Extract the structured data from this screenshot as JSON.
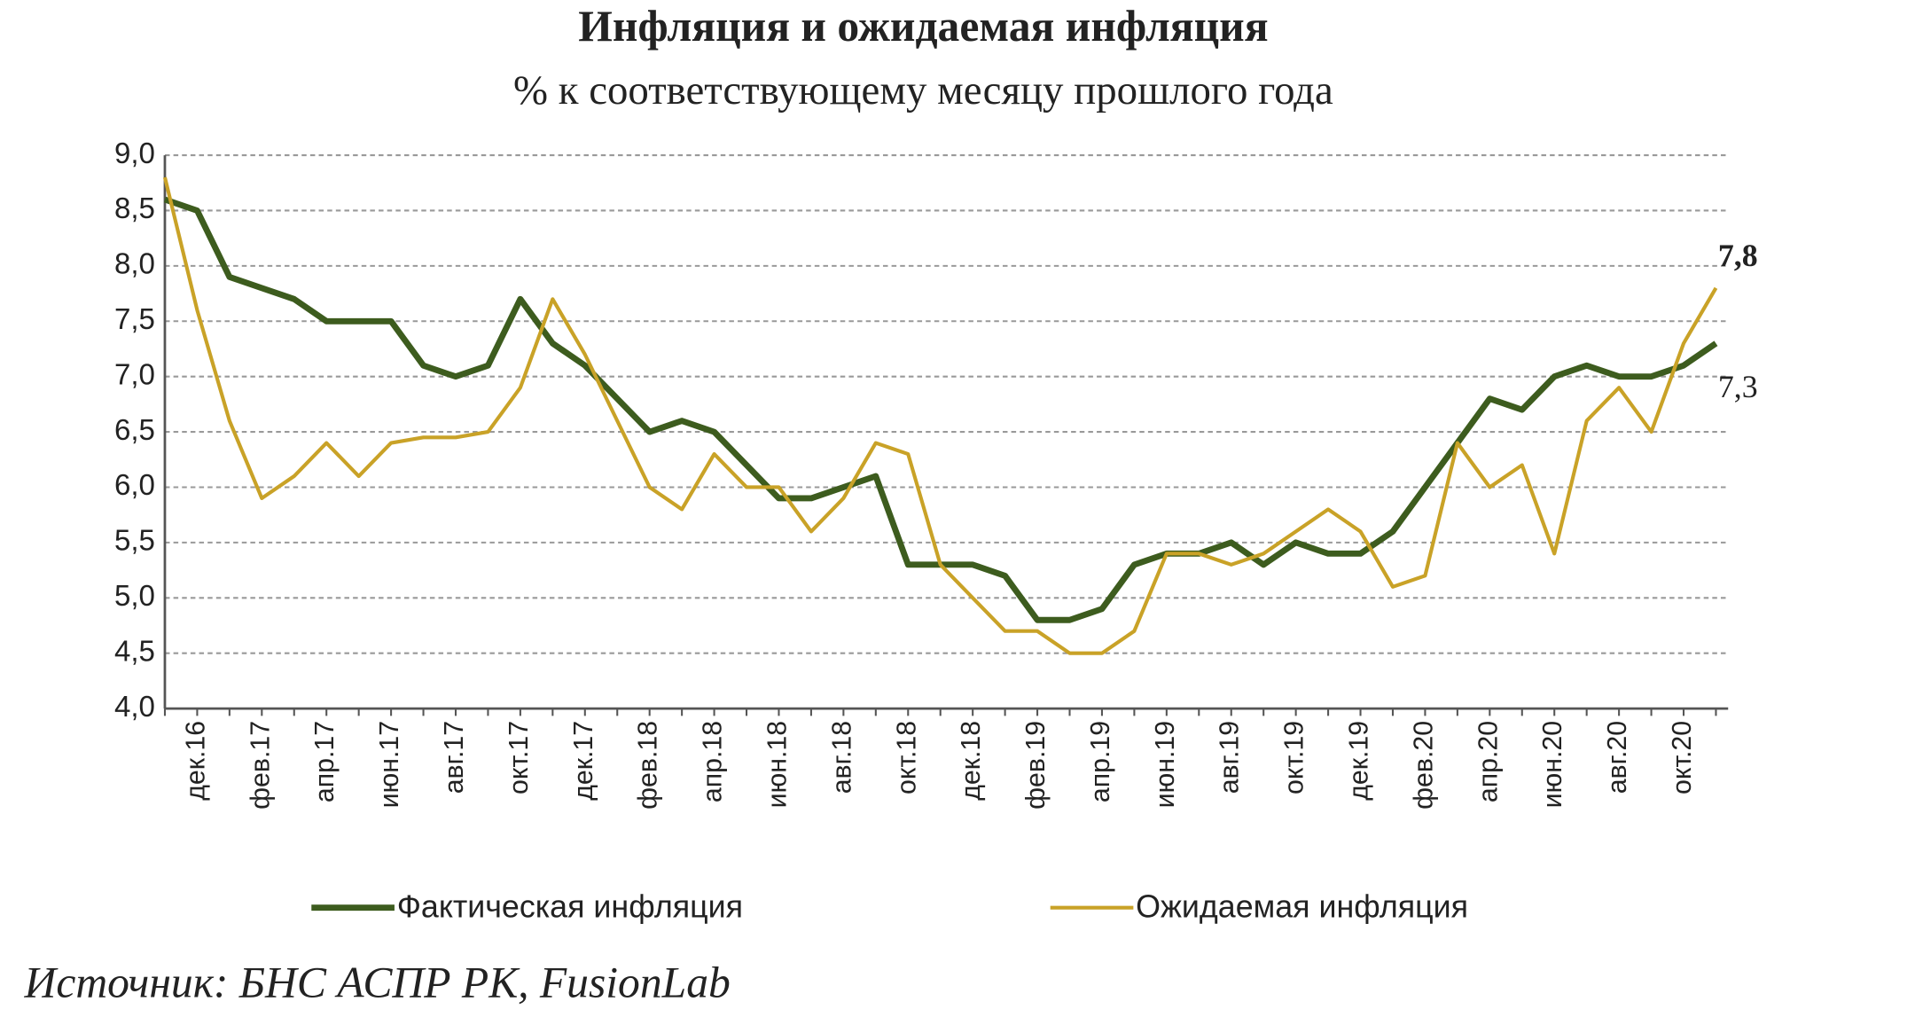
{
  "chart_data": {
    "type": "line",
    "title": "Инфляция и ожидаемая инфляция",
    "subtitle": "% к соответствующему месяцу прошлого года",
    "source": "Источник: БНС АСПР РК, FusionLab",
    "categories": [
      null,
      "дек.16",
      null,
      "фев.17",
      null,
      "апр.17",
      null,
      "июн.17",
      null,
      "авг.17",
      null,
      "окт.17",
      null,
      "дек.17",
      null,
      "фев.18",
      null,
      "апр.18",
      null,
      "июн.18",
      null,
      "авг.18",
      null,
      "окт.18",
      null,
      "дек.18",
      null,
      "фев.19",
      null,
      "апр.19",
      null,
      "июн.19",
      null,
      "авг.19",
      null,
      "окт.19",
      null,
      "дек.19",
      null,
      "фев.20",
      null,
      "апр.20",
      null,
      "июн.20",
      null,
      "авг.20",
      null,
      "окт.20",
      null
    ],
    "series": [
      {
        "name": "Фактическая инфляция",
        "color": "#3d5c1e",
        "values": [
          8.6,
          8.5,
          7.9,
          7.8,
          7.7,
          7.5,
          7.5,
          7.5,
          7.1,
          7.0,
          7.1,
          7.7,
          7.3,
          7.1,
          6.8,
          6.5,
          6.6,
          6.5,
          6.2,
          5.9,
          5.9,
          6.0,
          6.1,
          5.3,
          5.3,
          5.3,
          5.2,
          4.8,
          4.8,
          4.9,
          5.3,
          5.4,
          5.4,
          5.5,
          5.3,
          5.5,
          5.4,
          5.4,
          5.6,
          6.0,
          6.4,
          6.8,
          6.7,
          7.0,
          7.1,
          7.0,
          7.0,
          7.1,
          7.3
        ],
        "value_labels": [
          null,
          null,
          null,
          null,
          null,
          null,
          null,
          null,
          null,
          null,
          null,
          null,
          null,
          null,
          null,
          null,
          null,
          null,
          null,
          null,
          null,
          null,
          null,
          null,
          null,
          null,
          null,
          null,
          null,
          null,
          null,
          null,
          null,
          null,
          null,
          null,
          null,
          null,
          null,
          null,
          null,
          null,
          null,
          null,
          null,
          null,
          null,
          null,
          "7,3"
        ]
      },
      {
        "name": "Ожидаемая инфляция",
        "color": "#c9a227",
        "values": [
          8.8,
          7.6,
          6.6,
          5.9,
          6.1,
          6.4,
          6.1,
          6.4,
          6.45,
          6.45,
          6.5,
          6.9,
          7.7,
          7.2,
          6.6,
          6.0,
          5.8,
          6.3,
          6.0,
          6.0,
          5.6,
          5.9,
          6.4,
          6.3,
          5.3,
          5.0,
          4.7,
          4.7,
          4.5,
          4.5,
          4.7,
          5.4,
          5.4,
          5.3,
          5.4,
          5.6,
          5.8,
          5.6,
          5.1,
          5.2,
          6.4,
          6.0,
          6.2,
          5.4,
          6.6,
          6.9,
          6.5,
          7.3,
          7.8
        ],
        "value_labels": [
          null,
          null,
          null,
          null,
          null,
          null,
          null,
          null,
          null,
          null,
          null,
          null,
          null,
          null,
          null,
          null,
          null,
          null,
          null,
          null,
          null,
          null,
          null,
          null,
          null,
          null,
          null,
          null,
          null,
          null,
          null,
          null,
          null,
          null,
          null,
          null,
          null,
          null,
          null,
          null,
          null,
          null,
          null,
          null,
          null,
          null,
          null,
          null,
          "7,8"
        ]
      }
    ],
    "ylim": [
      4,
      9
    ],
    "yticks": [
      {
        "value": 4,
        "label": "4,0"
      },
      {
        "value": 4.5,
        "label": "4,5"
      },
      {
        "value": 5,
        "label": "5,0"
      },
      {
        "value": 5.5,
        "label": "5,5"
      },
      {
        "value": 6,
        "label": "6,0"
      },
      {
        "value": 6.5,
        "label": "6,5"
      },
      {
        "value": 7,
        "label": "7,0"
      },
      {
        "value": 7.5,
        "label": "7,5"
      },
      {
        "value": 8,
        "label": "8,0"
      },
      {
        "value": 8.5,
        "label": "8,5"
      },
      {
        "value": 9,
        "label": "9,0"
      }
    ],
    "grid": true
  }
}
